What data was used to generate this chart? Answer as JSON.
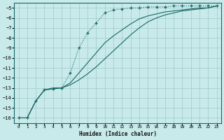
{
  "xlabel": "Humidex (Indice chaleur)",
  "background_color": "#c8eaea",
  "grid_color": "#a0c8c8",
  "line_color": "#1a6666",
  "xlim": [
    -0.5,
    23.5
  ],
  "ylim": [
    -16.5,
    -4.5
  ],
  "yticks": [
    -16,
    -15,
    -14,
    -13,
    -12,
    -11,
    -10,
    -9,
    -8,
    -7,
    -6,
    -5
  ],
  "xticks": [
    0,
    1,
    2,
    3,
    4,
    5,
    6,
    7,
    8,
    9,
    10,
    11,
    12,
    13,
    14,
    15,
    16,
    17,
    18,
    19,
    20,
    21,
    22,
    23
  ],
  "series": [
    {
      "x": [
        0,
        1,
        2,
        3,
        4,
        5,
        6,
        7,
        8,
        9,
        10,
        11,
        12,
        13,
        14,
        15,
        16,
        17,
        18,
        19,
        20,
        21,
        22,
        23
      ],
      "y": [
        -16,
        -16,
        -14.3,
        -13.2,
        -13.1,
        -13.0,
        -11.5,
        -9.0,
        -7.5,
        -6.5,
        -5.5,
        -5.2,
        -5.1,
        -5.0,
        -5.0,
        -4.9,
        -4.9,
        -4.9,
        -4.8,
        -4.8,
        -4.8,
        -4.8,
        -4.8,
        -4.8
      ],
      "marker": "+",
      "markersize": 3.5,
      "linewidth": 0.8,
      "linestyle": ":"
    },
    {
      "x": [
        0,
        1,
        2,
        3,
        4,
        5,
        6,
        7,
        8,
        9,
        10,
        11,
        12,
        13,
        14,
        15,
        16,
        17,
        18,
        19,
        20,
        21,
        22,
        23
      ],
      "y": [
        -16,
        -16,
        -14.3,
        -13.2,
        -13.0,
        -13.0,
        -12.5,
        -11.5,
        -10.5,
        -9.5,
        -8.5,
        -7.8,
        -7.2,
        -6.6,
        -6.1,
        -5.8,
        -5.6,
        -5.4,
        -5.3,
        -5.2,
        -5.1,
        -5.0,
        -5.0,
        -4.8
      ],
      "marker": null,
      "markersize": 0,
      "linewidth": 0.8,
      "linestyle": "-"
    },
    {
      "x": [
        0,
        1,
        2,
        3,
        4,
        5,
        6,
        7,
        8,
        9,
        10,
        11,
        12,
        13,
        14,
        15,
        16,
        17,
        18,
        19,
        20,
        21,
        22,
        23
      ],
      "y": [
        -16,
        -16,
        -14.3,
        -13.2,
        -13.1,
        -13.0,
        -12.7,
        -12.2,
        -11.6,
        -10.9,
        -10.1,
        -9.3,
        -8.5,
        -7.7,
        -7.0,
        -6.4,
        -6.0,
        -5.7,
        -5.5,
        -5.3,
        -5.2,
        -5.1,
        -5.0,
        -4.8
      ],
      "marker": null,
      "markersize": 0,
      "linewidth": 0.8,
      "linestyle": "-"
    }
  ]
}
